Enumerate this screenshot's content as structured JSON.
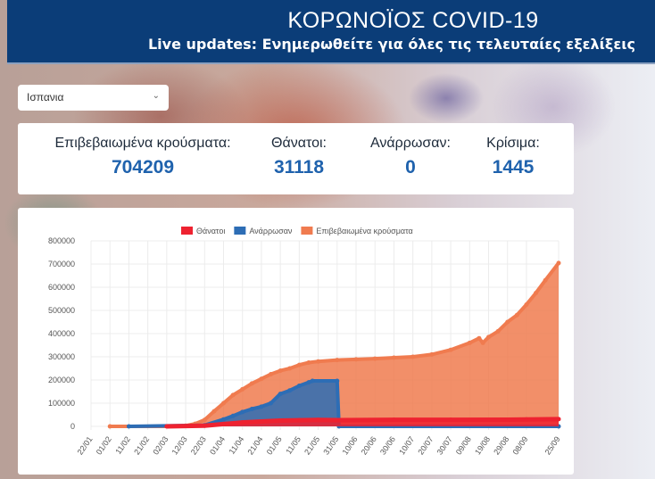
{
  "header": {
    "title": "ΚΟΡΩΝΟΪΟΣ COVID-19",
    "subtitle": "Live updates: Ενημερωθείτε για όλες τις τελευταίες εξελίξεις"
  },
  "country_select": {
    "value": "Ισπανια"
  },
  "stats": [
    {
      "label": "Επιβεβαιωμένα κρούσματα:",
      "value": "704209"
    },
    {
      "label": "Θάνατοι:",
      "value": "31118"
    },
    {
      "label": "Ανάρρωσαν:",
      "value": "0"
    },
    {
      "label": "Κρίσιμα:",
      "value": "1445"
    }
  ],
  "chart_data": {
    "type": "area",
    "legend": [
      "Θάνατοι",
      "Ανάρρωσαν",
      "Επιβεβαιωμένα κρούσματα"
    ],
    "legend_position": "top",
    "colors": {
      "Θάνατοι": "#ee2230",
      "Ανάρρωσαν": "#2d6db5",
      "Επιβεβαιωμένα κρούσματα": "#f07b4f"
    },
    "ylim": [
      0,
      800000
    ],
    "y_ticks": [
      "0",
      "100000",
      "200000",
      "300000",
      "400000",
      "500000",
      "600000",
      "700000",
      "800000"
    ],
    "x_ticks": [
      "22/01",
      "01/02",
      "11/02",
      "21/02",
      "02/03",
      "12/03",
      "22/03",
      "01/04",
      "11/04",
      "21/04",
      "01/05",
      "11/05",
      "21/05",
      "31/05",
      "10/06",
      "20/06",
      "30/06",
      "10/07",
      "20/07",
      "30/07",
      "09/08",
      "19/08",
      "29/08",
      "08/09",
      "25/09"
    ],
    "grid": true,
    "series": [
      {
        "name": "Επιβεβαιωμένα κρούσματα",
        "points": [
          [
            "01/02",
            0
          ],
          [
            "02/03",
            100
          ],
          [
            "12/03",
            3000
          ],
          [
            "17/03",
            11000
          ],
          [
            "22/03",
            28000
          ],
          [
            "27/03",
            65000
          ],
          [
            "01/04",
            100000
          ],
          [
            "06/04",
            135000
          ],
          [
            "11/04",
            160000
          ],
          [
            "16/04",
            185000
          ],
          [
            "21/04",
            205000
          ],
          [
            "26/04",
            225000
          ],
          [
            "01/05",
            240000
          ],
          [
            "06/05",
            250000
          ],
          [
            "11/05",
            265000
          ],
          [
            "16/05",
            275000
          ],
          [
            "21/05",
            280000
          ],
          [
            "31/05",
            286000
          ],
          [
            "10/06",
            289000
          ],
          [
            "20/06",
            292000
          ],
          [
            "30/06",
            296000
          ],
          [
            "10/07",
            300000
          ],
          [
            "20/07",
            310000
          ],
          [
            "30/07",
            330000
          ],
          [
            "09/08",
            360000
          ],
          [
            "14/08",
            380000
          ],
          [
            "16/08",
            360000
          ],
          [
            "19/08",
            385000
          ],
          [
            "24/08",
            410000
          ],
          [
            "29/08",
            450000
          ],
          [
            "03/09",
            480000
          ],
          [
            "08/09",
            525000
          ],
          [
            "13/09",
            575000
          ],
          [
            "18/09",
            630000
          ],
          [
            "25/09",
            704209
          ]
        ]
      },
      {
        "name": "Ανάρρωσαν",
        "points": [
          [
            "11/02",
            0
          ],
          [
            "22/03",
            5000
          ],
          [
            "01/04",
            30000
          ],
          [
            "06/04",
            45000
          ],
          [
            "11/04",
            62000
          ],
          [
            "16/04",
            75000
          ],
          [
            "21/04",
            85000
          ],
          [
            "26/04",
            100000
          ],
          [
            "01/05",
            140000
          ],
          [
            "06/05",
            155000
          ],
          [
            "11/05",
            175000
          ],
          [
            "16/05",
            190000
          ],
          [
            "18/05",
            196000
          ],
          [
            "31/05",
            196000
          ],
          [
            "01/06",
            0
          ],
          [
            "25/09",
            0
          ]
        ]
      },
      {
        "name": "Θάνατοι",
        "points": [
          [
            "02/03",
            0
          ],
          [
            "22/03",
            3000
          ],
          [
            "01/04",
            10000
          ],
          [
            "11/04",
            17000
          ],
          [
            "21/04",
            21000
          ],
          [
            "01/05",
            25000
          ],
          [
            "11/05",
            26500
          ],
          [
            "21/05",
            28000
          ],
          [
            "31/05",
            27000
          ],
          [
            "30/06",
            28300
          ],
          [
            "30/07",
            28500
          ],
          [
            "29/08",
            29000
          ],
          [
            "08/09",
            30000
          ],
          [
            "25/09",
            31118
          ]
        ]
      }
    ]
  }
}
